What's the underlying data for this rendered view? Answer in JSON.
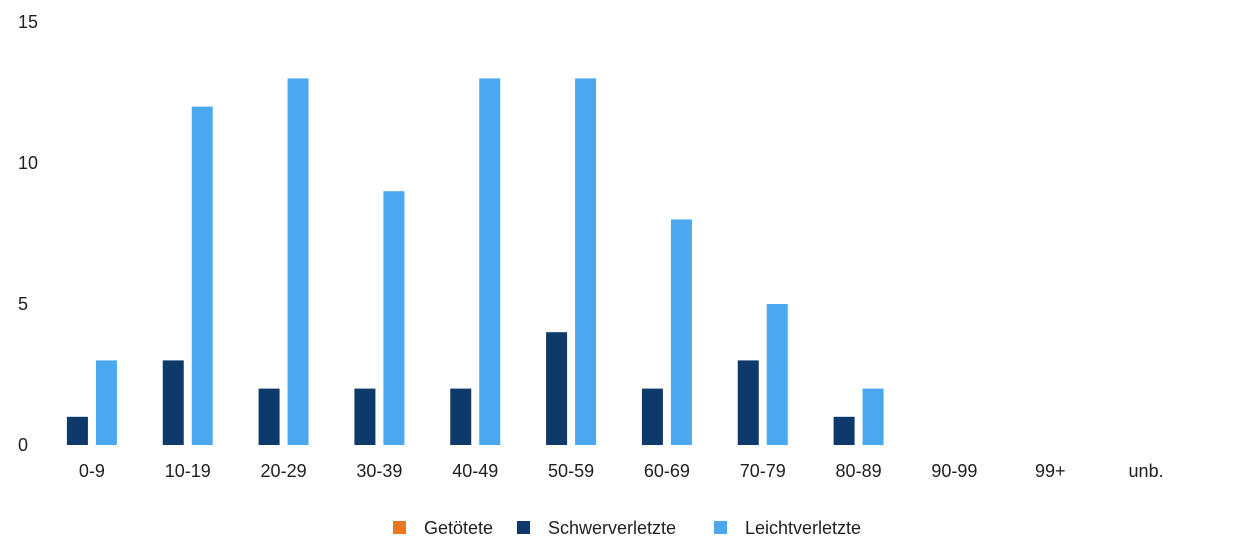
{
  "chart_data": {
    "type": "bar",
    "categories": [
      "0-9",
      "10-19",
      "20-29",
      "30-39",
      "40-49",
      "50-59",
      "60-69",
      "70-79",
      "80-89",
      "90-99",
      "99+",
      "unb."
    ],
    "series": [
      {
        "name": "Getötete",
        "color": "#E87722",
        "values": [
          0,
          0,
          0,
          0,
          0,
          0,
          0,
          0,
          0,
          0,
          0,
          0
        ]
      },
      {
        "name": "Schwerverletzte",
        "color": "#0D3A6B",
        "values": [
          1,
          3,
          2,
          2,
          2,
          4,
          2,
          3,
          1,
          0,
          0,
          0
        ]
      },
      {
        "name": "Leichtverletzte",
        "color": "#4BA8EE",
        "values": [
          3,
          12,
          13,
          9,
          13,
          13,
          8,
          5,
          2,
          0,
          0,
          0
        ]
      }
    ],
    "ylim": [
      0,
      15
    ],
    "yticks": [
      0,
      5,
      10,
      15
    ],
    "grid": false,
    "legend_position": "bottom-center"
  }
}
